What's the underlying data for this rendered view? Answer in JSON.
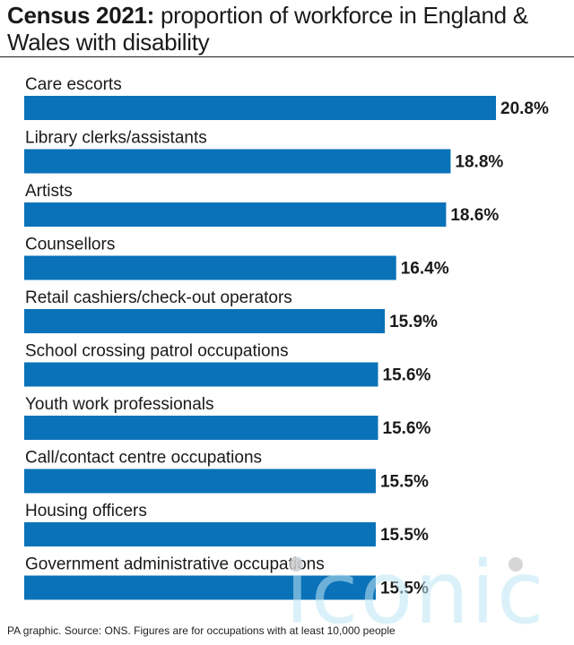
{
  "header": {
    "title_bold": "Census 2021:",
    "title_rest": " proportion of workforce in England & Wales with disability"
  },
  "footer": {
    "source": "PA graphic. Source: ONS. Figures are for occupations with at least 10,000 people"
  },
  "watermark": {
    "text": "iconic"
  },
  "colors": {
    "bar": "#0a72b8",
    "text": "#1a1a1a"
  },
  "chart_data": {
    "type": "bar",
    "orientation": "horizontal",
    "title": "Census 2021: proportion of workforce in England & Wales with disability",
    "categories": [
      "Care escorts",
      "Library clerks/assistants",
      "Artists",
      "Counsellors",
      "Retail cashiers/check-out operators",
      "School crossing patrol occupations",
      "Youth work professionals",
      "Call/contact centre occupations",
      "Housing officers",
      "Government administrative occupations"
    ],
    "values": [
      20.8,
      18.8,
      18.6,
      16.4,
      15.9,
      15.6,
      15.6,
      15.5,
      15.5,
      15.5
    ],
    "value_labels": [
      "20.8%",
      "18.8%",
      "18.6%",
      "16.4%",
      "15.9%",
      "15.6%",
      "15.6%",
      "15.5%",
      "15.5%",
      "15.5%"
    ],
    "unit": "%",
    "xlim": [
      0,
      20.8
    ],
    "grid": false,
    "legend": "none"
  }
}
